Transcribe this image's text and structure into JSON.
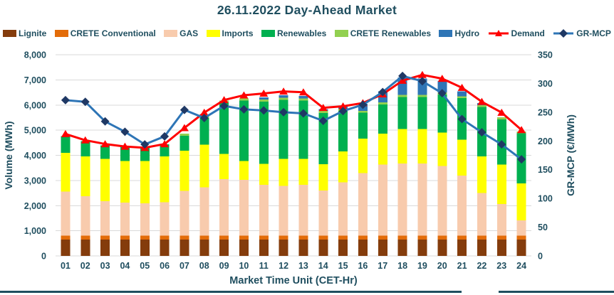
{
  "title": "26.11.2022  Day-Ahead Market",
  "colors": {
    "text": "#1F4E5F",
    "grid": "#D9D9D9",
    "background": "#FFFFFF",
    "bottom_border": "#1F4E5F"
  },
  "chart_data": {
    "type": "combo-stacked-bar-line",
    "title": "26.11.2022  Day-Ahead Market",
    "grid": true,
    "legend_position": "top",
    "x_categories": [
      "01",
      "02",
      "03",
      "04",
      "05",
      "06",
      "07",
      "08",
      "09",
      "10",
      "11",
      "12",
      "13",
      "14",
      "15",
      "16",
      "17",
      "18",
      "19",
      "20",
      "21",
      "22",
      "23",
      "24"
    ],
    "x_axis": {
      "title": "Market Time Unit (CET-Hr)"
    },
    "left_axis": {
      "title": "Volume (MWh)",
      "min": 0,
      "max": 8000,
      "step": 1000,
      "ticks": [
        "0",
        "1,000",
        "2,000",
        "3,000",
        "4,000",
        "5,000",
        "6,000",
        "7,000",
        "8,000"
      ]
    },
    "right_axis": {
      "title": "GR-MCP (€/MWh)",
      "min": 0,
      "max": 350,
      "step": 50,
      "ticks": [
        "0",
        "50",
        "100",
        "150",
        "200",
        "250",
        "300",
        "350"
      ]
    },
    "bar_series": [
      {
        "name": "Lignite",
        "color": "#843C0C",
        "values": [
          650,
          650,
          650,
          650,
          650,
          650,
          650,
          650,
          650,
          650,
          650,
          650,
          650,
          650,
          650,
          650,
          650,
          650,
          650,
          650,
          650,
          650,
          650,
          650
        ]
      },
      {
        "name": "CRETE Conventional",
        "color": "#E36C09",
        "values": [
          150,
          150,
          150,
          150,
          150,
          150,
          150,
          150,
          150,
          150,
          150,
          150,
          150,
          150,
          150,
          150,
          150,
          150,
          150,
          150,
          150,
          150,
          150,
          150
        ]
      },
      {
        "name": "GAS",
        "color": "#F8CBAD",
        "values": [
          1760,
          1575,
          1370,
          1320,
          1290,
          1340,
          1790,
          1930,
          2260,
          2230,
          2030,
          1980,
          2030,
          1800,
          2120,
          2500,
          2830,
          2880,
          2880,
          2780,
          2400,
          1700,
          1270,
          610
        ]
      },
      {
        "name": "Imports",
        "color": "#FFFF00",
        "values": [
          1540,
          1585,
          1690,
          1650,
          1680,
          1820,
          1600,
          1700,
          990,
          740,
          830,
          1080,
          1030,
          1050,
          1230,
          1360,
          1230,
          1360,
          1360,
          1320,
          1420,
          1460,
          1560,
          1470
        ]
      },
      {
        "name": "Renewables",
        "color": "#00B050",
        "values": [
          660,
          610,
          540,
          580,
          550,
          480,
          590,
          1050,
          2050,
          2410,
          2480,
          2350,
          2320,
          2030,
          1620,
          1030,
          1160,
          1280,
          1280,
          1520,
          1650,
          1960,
          1800,
          1990
        ]
      },
      {
        "name": "CRETE Renewables",
        "color": "#92D050",
        "values": [
          0,
          0,
          0,
          0,
          0,
          0,
          80,
          80,
          80,
          80,
          80,
          80,
          80,
          80,
          80,
          80,
          80,
          80,
          80,
          80,
          80,
          80,
          80,
          80
        ]
      },
      {
        "name": "Hydro",
        "color": "#2E75B6",
        "values": [
          0,
          0,
          0,
          0,
          0,
          0,
          0,
          0,
          0,
          0,
          80,
          100,
          100,
          80,
          100,
          280,
          450,
          700,
          650,
          450,
          200,
          80,
          0,
          0
        ]
      }
    ],
    "line_series": [
      {
        "name": "Demand",
        "color": "#FF0000",
        "marker": "triangle",
        "marker_color": "#FF0000",
        "axis": "left",
        "values": [
          4850,
          4600,
          4450,
          4350,
          4300,
          4450,
          5090,
          5700,
          6200,
          6390,
          6460,
          6540,
          6510,
          5890,
          5950,
          6080,
          6430,
          6970,
          7200,
          7050,
          6690,
          6130,
          5700,
          5010
        ]
      },
      {
        "name": "GR-MCP",
        "color": "#2E75B6",
        "marker": "diamond",
        "marker_color": "#1F3864",
        "axis": "right",
        "values": [
          271,
          268,
          234,
          216,
          194,
          208,
          254,
          240,
          261,
          255,
          253,
          250,
          248,
          235,
          252,
          263,
          285,
          313,
          304,
          283,
          238,
          215,
          194,
          168
        ]
      }
    ]
  }
}
